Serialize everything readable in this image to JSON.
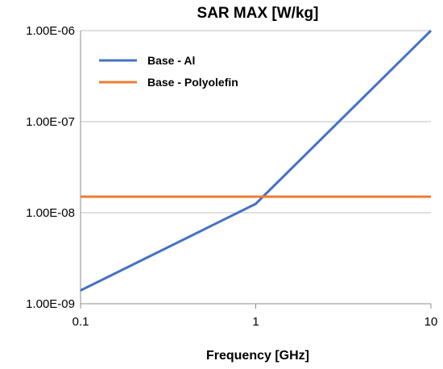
{
  "chart_data": {
    "type": "line",
    "title": "SAR MAX [W/kg]",
    "xlabel": "Frequency [GHz]",
    "ylabel": "",
    "x_scale": "log",
    "y_scale": "log",
    "xlim": [
      0.1,
      10
    ],
    "ylim": [
      1e-09,
      1e-06
    ],
    "x_ticks": [
      {
        "value": 0.1,
        "label": "0.1"
      },
      {
        "value": 1,
        "label": "1"
      },
      {
        "value": 10,
        "label": "10"
      }
    ],
    "y_ticks": [
      {
        "value": 1e-09,
        "label": "1.00E-09"
      },
      {
        "value": 1e-08,
        "label": "1.00E-08"
      },
      {
        "value": 1e-07,
        "label": "1.00E-07"
      },
      {
        "value": 1e-06,
        "label": "1.00E-06"
      }
    ],
    "grid": "horizontal",
    "legend_position": "top-left",
    "series": [
      {
        "name": "Base - Al",
        "color": "#4472c4",
        "x": [
          0.1,
          1,
          10
        ],
        "y": [
          1.4e-09,
          1.25e-08,
          1e-06
        ]
      },
      {
        "name": "Base - Polyolefin",
        "color": "#ed7d31",
        "x": [
          0.1,
          10
        ],
        "y": [
          1.5e-08,
          1.5e-08
        ]
      }
    ]
  }
}
